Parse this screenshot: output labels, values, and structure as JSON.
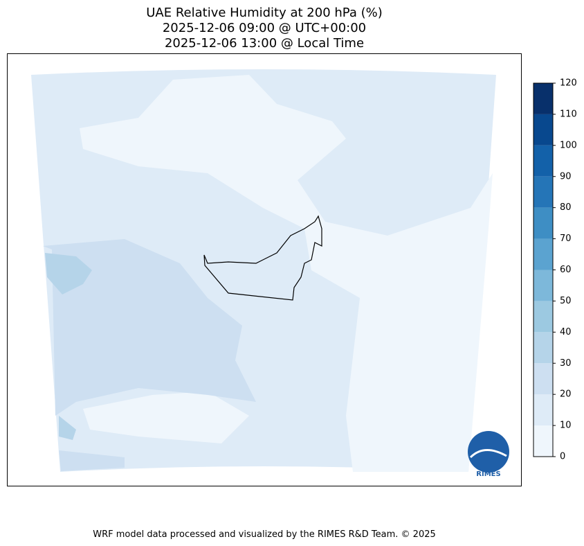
{
  "title": [
    "UAE Relative Humidity at 200 hPa (%)",
    "2025-12-06 09:00 @ UTC+00:00",
    "2025-12-06 13:00 @ Local Time"
  ],
  "colorbar": {
    "ticks": [
      0,
      10,
      20,
      30,
      40,
      50,
      60,
      70,
      80,
      90,
      100,
      110,
      120
    ],
    "colors": [
      "#eff6fc",
      "#deebf7",
      "#cddff1",
      "#b5d4e9",
      "#9cc9e1",
      "#7db8da",
      "#5ba3d0",
      "#3e8ec4",
      "#2575b7",
      "#1361a9",
      "#08488e",
      "#08306b"
    ]
  },
  "footer": "WRF model data processed and visualized by the RIMES R&D Team. © 2025",
  "logo": "RIMES"
}
